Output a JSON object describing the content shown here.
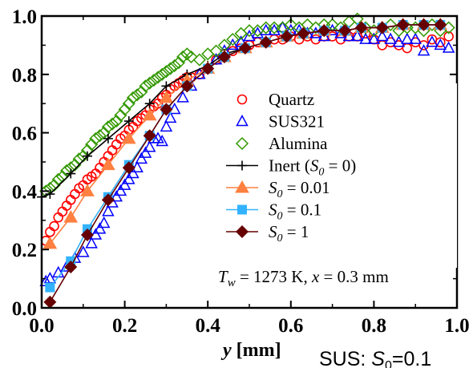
{
  "chart_data": {
    "type": "line",
    "xlabel": "y [mm]",
    "xlabel_var": "y",
    "xlabel_unit": " [mm]",
    "ylabel": "",
    "xlim": [
      0,
      1
    ],
    "ylim": [
      0,
      1
    ],
    "xticks": [
      "0.0",
      "0.2",
      "0.4",
      "0.6",
      "0.8",
      "1.0"
    ],
    "yticks": [
      "0.0",
      "0.2",
      "0.4",
      "0.6",
      "0.8",
      "1.0"
    ],
    "grid": false,
    "legend_position": "center-right",
    "annotation": {
      "p1": "T",
      "p2": "w",
      "p3": " = 1273 K, ",
      "p4": "x",
      "p5": " = 0.3 mm"
    },
    "caption": {
      "p1": "SUS: ",
      "p2": "S",
      "p3": "0",
      "p4": "=0.1"
    },
    "series": [
      {
        "name": "Quartz",
        "marker": "circle-open",
        "color": "#ff0000",
        "line": false,
        "x": [
          0.01,
          0.02,
          0.03,
          0.04,
          0.05,
          0.06,
          0.07,
          0.08,
          0.09,
          0.1,
          0.11,
          0.12,
          0.13,
          0.14,
          0.15,
          0.16,
          0.17,
          0.18,
          0.19,
          0.2,
          0.21,
          0.22,
          0.23,
          0.24,
          0.25,
          0.26,
          0.27,
          0.28,
          0.29,
          0.3,
          0.31,
          0.32,
          0.33,
          0.34,
          0.35,
          0.36,
          0.38,
          0.4,
          0.42,
          0.44,
          0.46,
          0.48,
          0.5,
          0.52,
          0.54,
          0.56,
          0.58,
          0.6,
          0.62,
          0.64,
          0.66,
          0.68,
          0.7,
          0.72,
          0.74,
          0.76,
          0.78,
          0.8,
          0.82,
          0.84,
          0.86,
          0.88,
          0.9,
          0.92,
          0.94,
          0.96,
          0.98
        ],
        "y": [
          0.23,
          0.26,
          0.28,
          0.31,
          0.33,
          0.35,
          0.37,
          0.39,
          0.41,
          0.42,
          0.44,
          0.45,
          0.46,
          0.48,
          0.5,
          0.52,
          0.54,
          0.56,
          0.58,
          0.59,
          0.61,
          0.62,
          0.64,
          0.65,
          0.66,
          0.68,
          0.69,
          0.7,
          0.72,
          0.73,
          0.75,
          0.76,
          0.77,
          0.78,
          0.79,
          0.79,
          0.8,
          0.82,
          0.85,
          0.87,
          0.88,
          0.89,
          0.9,
          0.91,
          0.91,
          0.92,
          0.92,
          0.93,
          0.92,
          0.93,
          0.92,
          0.93,
          0.93,
          0.92,
          0.93,
          0.93,
          0.94,
          0.92,
          0.9,
          0.91,
          0.9,
          0.89,
          0.91,
          0.9,
          0.92,
          0.91,
          0.93
        ]
      },
      {
        "name": "SUS321",
        "marker": "triangle-open",
        "color": "#0000ff",
        "line": false,
        "x": [
          0.01,
          0.02,
          0.04,
          0.06,
          0.08,
          0.1,
          0.12,
          0.13,
          0.14,
          0.15,
          0.16,
          0.17,
          0.18,
          0.19,
          0.2,
          0.21,
          0.22,
          0.23,
          0.24,
          0.25,
          0.26,
          0.27,
          0.28,
          0.29,
          0.3,
          0.31,
          0.32,
          0.34,
          0.36,
          0.38,
          0.4,
          0.42,
          0.44,
          0.46,
          0.48,
          0.5,
          0.52,
          0.54,
          0.56,
          0.58,
          0.6,
          0.62,
          0.64,
          0.66,
          0.68,
          0.7,
          0.72,
          0.74,
          0.76,
          0.78,
          0.8,
          0.82,
          0.84,
          0.86,
          0.88,
          0.9,
          0.92,
          0.94,
          0.96,
          0.98
        ],
        "y": [
          0.09,
          0.1,
          0.12,
          0.14,
          0.17,
          0.19,
          0.22,
          0.25,
          0.27,
          0.29,
          0.33,
          0.36,
          0.38,
          0.4,
          0.42,
          0.44,
          0.46,
          0.48,
          0.51,
          0.53,
          0.55,
          0.58,
          0.58,
          0.57,
          0.62,
          0.65,
          0.68,
          0.72,
          0.76,
          0.8,
          0.82,
          0.85,
          0.88,
          0.9,
          0.91,
          0.93,
          0.94,
          0.95,
          0.95,
          0.96,
          0.95,
          0.95,
          0.94,
          0.94,
          0.93,
          0.95,
          0.94,
          0.93,
          0.93,
          0.92,
          0.92,
          0.93,
          0.92,
          0.91,
          0.92,
          0.92,
          0.88,
          0.91,
          0.9,
          0.89
        ]
      },
      {
        "name": "Alumina",
        "marker": "diamond-open",
        "color": "#339900",
        "line": false,
        "x": [
          0.01,
          0.02,
          0.03,
          0.04,
          0.05,
          0.06,
          0.07,
          0.08,
          0.09,
          0.1,
          0.11,
          0.12,
          0.13,
          0.14,
          0.15,
          0.16,
          0.17,
          0.18,
          0.19,
          0.2,
          0.21,
          0.22,
          0.23,
          0.24,
          0.25,
          0.26,
          0.27,
          0.28,
          0.29,
          0.3,
          0.31,
          0.32,
          0.33,
          0.34,
          0.35,
          0.36,
          0.38,
          0.4,
          0.42,
          0.44,
          0.46,
          0.48,
          0.5,
          0.52,
          0.54,
          0.56,
          0.58,
          0.6,
          0.62,
          0.64,
          0.66,
          0.68,
          0.7,
          0.72,
          0.74,
          0.76,
          0.78,
          0.8,
          0.82,
          0.84,
          0.86,
          0.88,
          0.9,
          0.92,
          0.94,
          0.96,
          0.98
        ],
        "y": [
          0.4,
          0.41,
          0.42,
          0.44,
          0.45,
          0.47,
          0.48,
          0.49,
          0.51,
          0.52,
          0.54,
          0.56,
          0.58,
          0.59,
          0.6,
          0.62,
          0.63,
          0.64,
          0.66,
          0.68,
          0.7,
          0.72,
          0.73,
          0.74,
          0.76,
          0.77,
          0.78,
          0.79,
          0.8,
          0.81,
          0.82,
          0.83,
          0.84,
          0.86,
          0.87,
          0.86,
          0.85,
          0.87,
          0.88,
          0.9,
          0.92,
          0.94,
          0.95,
          0.95,
          0.96,
          0.96,
          0.96,
          0.97,
          0.96,
          0.97,
          0.96,
          0.97,
          0.97,
          0.96,
          0.98,
          0.99,
          0.96,
          0.95,
          0.96,
          0.97,
          0.95,
          0.96,
          0.96,
          0.95,
          0.97,
          0.95,
          0.96
        ]
      },
      {
        "name": "Inert (S0 = 0)",
        "label_parts": {
          "p1": "Inert (",
          "p2": "S",
          "p3": "0",
          "p4": " = 0)"
        },
        "marker": "plus",
        "color": "#000000",
        "line": true,
        "x": [
          0.0,
          0.02,
          0.07,
          0.11,
          0.16,
          0.21,
          0.26,
          0.3,
          0.35,
          0.4,
          0.44,
          0.49,
          0.54,
          0.59,
          0.63,
          0.68,
          0.73,
          0.77,
          0.82,
          0.87,
          0.92,
          0.96
        ],
        "y": [
          0.38,
          0.39,
          0.46,
          0.52,
          0.58,
          0.64,
          0.7,
          0.76,
          0.8,
          0.83,
          0.87,
          0.89,
          0.91,
          0.93,
          0.94,
          0.95,
          0.95,
          0.96,
          0.96,
          0.97,
          0.97,
          0.97
        ]
      },
      {
        "name": "S0 = 0.01",
        "label_parts": {
          "p1": "",
          "p2": "S",
          "p3": "0",
          "p4": " = 0.01"
        },
        "marker": "triangle-filled",
        "color": "#ff8040",
        "line": true,
        "x": [
          0.02,
          0.07,
          0.11,
          0.16,
          0.21,
          0.26,
          0.3,
          0.35,
          0.4,
          0.44,
          0.49,
          0.54,
          0.59,
          0.63,
          0.68,
          0.73,
          0.77,
          0.82,
          0.87,
          0.92,
          0.96
        ],
        "y": [
          0.22,
          0.31,
          0.4,
          0.49,
          0.58,
          0.66,
          0.72,
          0.78,
          0.82,
          0.86,
          0.89,
          0.91,
          0.93,
          0.94,
          0.95,
          0.95,
          0.96,
          0.96,
          0.97,
          0.97,
          0.97
        ]
      },
      {
        "name": "S0 = 0.1",
        "label_parts": {
          "p1": "",
          "p2": "S",
          "p3": "0",
          "p4": " = 0.1"
        },
        "marker": "square-filled",
        "color": "#33b3ff",
        "line": true,
        "x": [
          0.02,
          0.07,
          0.11,
          0.16,
          0.21,
          0.26,
          0.3,
          0.35,
          0.4,
          0.44,
          0.49,
          0.54,
          0.59,
          0.63,
          0.68,
          0.73,
          0.77,
          0.82,
          0.87,
          0.92,
          0.96
        ],
        "y": [
          0.07,
          0.16,
          0.27,
          0.38,
          0.49,
          0.59,
          0.68,
          0.76,
          0.82,
          0.86,
          0.89,
          0.91,
          0.93,
          0.94,
          0.95,
          0.95,
          0.96,
          0.96,
          0.97,
          0.97,
          0.97
        ]
      },
      {
        "name": "S0 = 1",
        "label_parts": {
          "p1": "",
          "p2": "S",
          "p3": "0",
          "p4": " = 1"
        },
        "marker": "diamond-filled",
        "color": "#660000",
        "line": true,
        "x": [
          0.02,
          0.07,
          0.11,
          0.16,
          0.21,
          0.26,
          0.3,
          0.35,
          0.4,
          0.44,
          0.49,
          0.54,
          0.59,
          0.63,
          0.68,
          0.73,
          0.77,
          0.82,
          0.87,
          0.92,
          0.96
        ],
        "y": [
          0.02,
          0.14,
          0.25,
          0.37,
          0.48,
          0.59,
          0.68,
          0.76,
          0.82,
          0.86,
          0.89,
          0.91,
          0.93,
          0.94,
          0.95,
          0.95,
          0.96,
          0.96,
          0.97,
          0.97,
          0.97
        ]
      }
    ]
  }
}
